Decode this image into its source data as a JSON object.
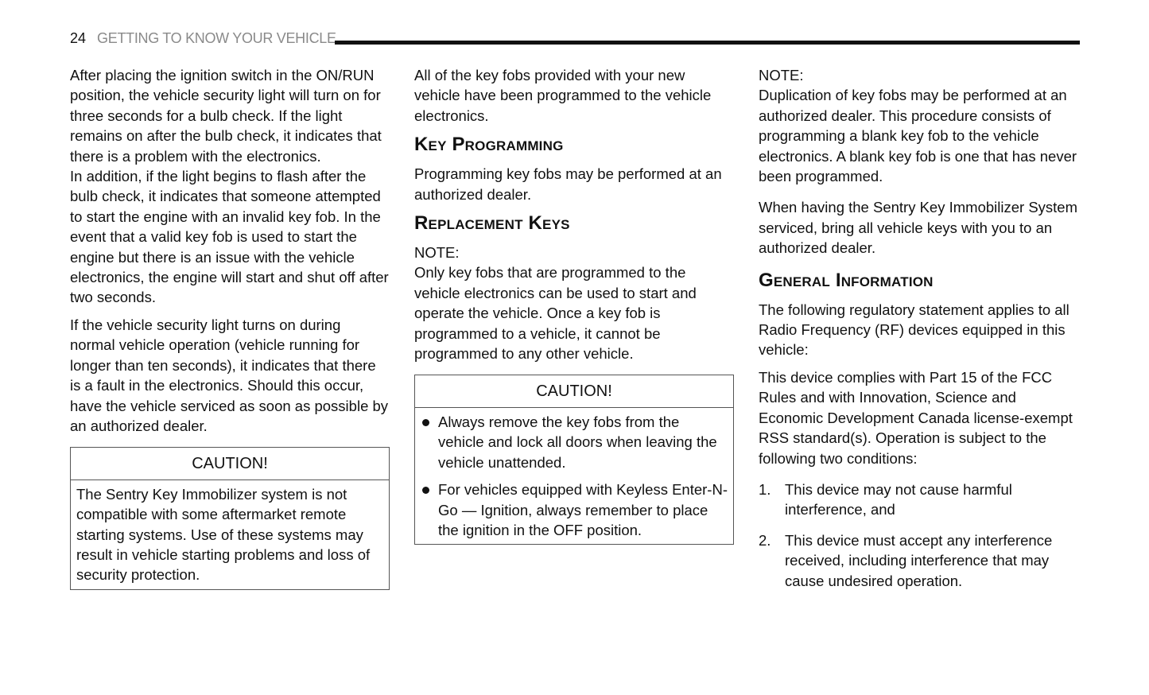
{
  "header": {
    "page_number": "24",
    "section": "GETTING TO KNOW YOUR VEHICLE"
  },
  "col1": {
    "p1": "After placing the ignition switch in the ON/RUN position, the vehicle security light will turn on for three seconds for a bulb check. If the light remains on after the bulb check, it indicates that there is a problem with the electronics.",
    "p2": "In addition, if the light begins to flash after the bulb check, it indicates that someone attempted to start the engine with an invalid key fob. In the event that a valid key fob is used to start the engine but there is an issue with the vehicle electronics, the engine will start and shut off after two seconds.",
    "p3": "If the vehicle security light turns on during normal vehicle operation (vehicle running for longer than ten seconds), it indicates that there is a fault in the electronics. Should this occur, have the vehicle serviced as soon as possible by an authorized dealer.",
    "caution": {
      "title": "CAUTION!",
      "text": "The Sentry Key Immobilizer system is not compatible with some aftermarket remote starting systems. Use of these systems may result in vehicle starting problems and loss of security protection."
    }
  },
  "col2": {
    "p1": "All of the key fobs provided with your new vehicle have been programmed to the vehicle electronics.",
    "h1": "Key Programming",
    "p2": "Programming key fobs may be performed at an authorized dealer.",
    "h2": "Replacement Keys",
    "note_label": "NOTE:",
    "note": "Only key fobs that are programmed to the vehicle electronics can be used to start and operate the vehicle. Once a key fob is programmed to a vehicle, it cannot be programmed to any other vehicle.",
    "caution": {
      "title": "CAUTION!",
      "items": [
        "Always remove the key fobs from the vehicle and lock all doors when leaving the vehicle unattended.",
        "For vehicles equipped with Keyless Enter-N-Go — Ignition, always remember to place the ignition in the OFF position."
      ]
    }
  },
  "col3": {
    "note_label": "NOTE:",
    "note": "Duplication of key fobs may be performed at an authorized dealer. This procedure consists of programming a blank key fob to the vehicle electronics. A blank key fob is one that has never been programmed.",
    "p1": "When having the Sentry Key Immobilizer System serviced, bring all vehicle keys with you to an authorized dealer.",
    "h1": "General Information",
    "p2": "The following regulatory statement applies to all Radio Frequency (RF) devices equipped in this vehicle:",
    "p3": "This device complies with Part 15 of the FCC Rules and with Innovation, Science and Economic Development Canada license-exempt RSS standard(s). Operation is subject to the following two conditions:",
    "list": [
      {
        "n": "1.",
        "text": "This device may not cause harmful interference, and"
      },
      {
        "n": "2.",
        "text": "This device must accept any interference received, including interference that may cause undesired operation."
      }
    ]
  }
}
